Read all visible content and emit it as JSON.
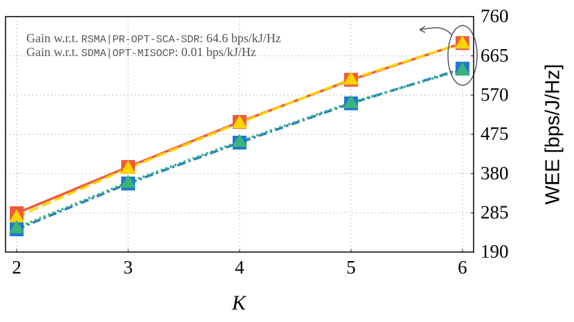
{
  "chart_data": {
    "type": "line",
    "x": [
      2,
      3,
      4,
      5,
      6
    ],
    "xlim": [
      1.9,
      6.1
    ],
    "xticks": [
      2,
      3,
      4,
      5,
      6
    ],
    "ylim": [
      190,
      760
    ],
    "yticks": [
      190,
      285,
      380,
      475,
      570,
      665,
      760
    ],
    "x_label": "K",
    "y_label": "WEE [bps/J/Hz]",
    "grid": true,
    "series": [
      {
        "color": "#f05a3c",
        "line_style": "solid",
        "marker": "square",
        "values": [
          284,
          396,
          505,
          607,
          696
        ]
      },
      {
        "color": "#ffd400",
        "line_style": "dashed",
        "marker": "triangle",
        "values": [
          275,
          393,
          503,
          609,
          696
        ]
      },
      {
        "color": "#1f78d1",
        "line_style": "dashdot",
        "marker": "square",
        "values": [
          245,
          356,
          455,
          550,
          634
        ]
      },
      {
        "color": "#3cb37a",
        "line_style": "dotted",
        "marker": "triangle",
        "values": [
          249,
          359,
          458,
          552,
          631
        ]
      }
    ],
    "annotations": [
      {
        "prefix": "Gain w.r.t.",
        "method": "RSMA|PR-OPT-SCA-SDR",
        "suffix": ": 64.6 bps/kJ/Hz"
      },
      {
        "prefix": "Gain w.r.t.",
        "method": "SDMA|OPT-MISOCP",
        "suffix": ": 0.01 bps/kJ/Hz"
      }
    ]
  }
}
